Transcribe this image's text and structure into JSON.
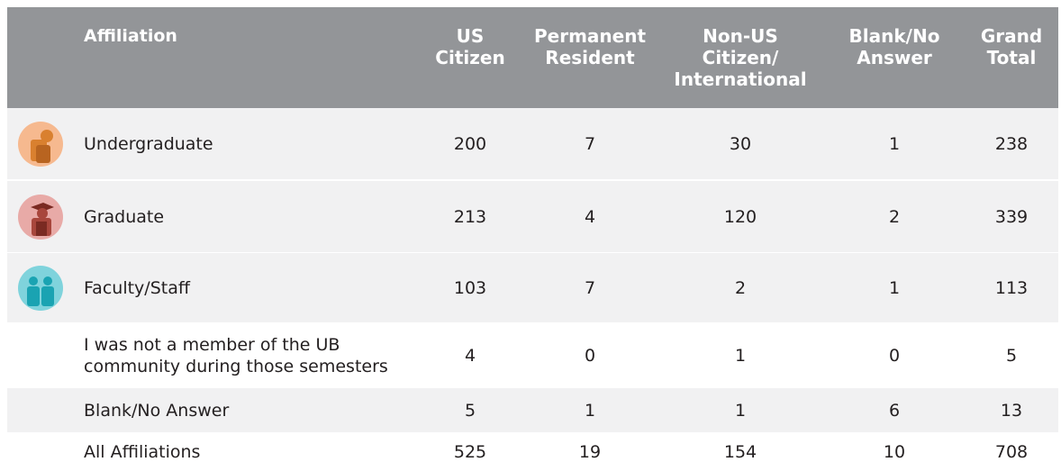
{
  "table": {
    "header": [
      "Affiliation",
      "US\nCitizen",
      "Permanent\nResident",
      "Non-US\nCitizen/\nInternational",
      "Blank/No\nAnswer",
      "Grand\nTotal"
    ],
    "rows": [
      [
        "Undergraduate",
        200,
        7,
        30,
        1,
        238
      ],
      [
        "Graduate",
        213,
        4,
        120,
        2,
        339
      ],
      [
        "Faculty/Staff",
        103,
        7,
        2,
        1,
        113
      ],
      [
        "I was not a member of the UB community during those semesters",
        4,
        0,
        1,
        0,
        5
      ],
      [
        "Blank/No Answer",
        5,
        1,
        1,
        6,
        13
      ],
      [
        "All Affiliations",
        525,
        19,
        154,
        10,
        708
      ]
    ]
  }
}
